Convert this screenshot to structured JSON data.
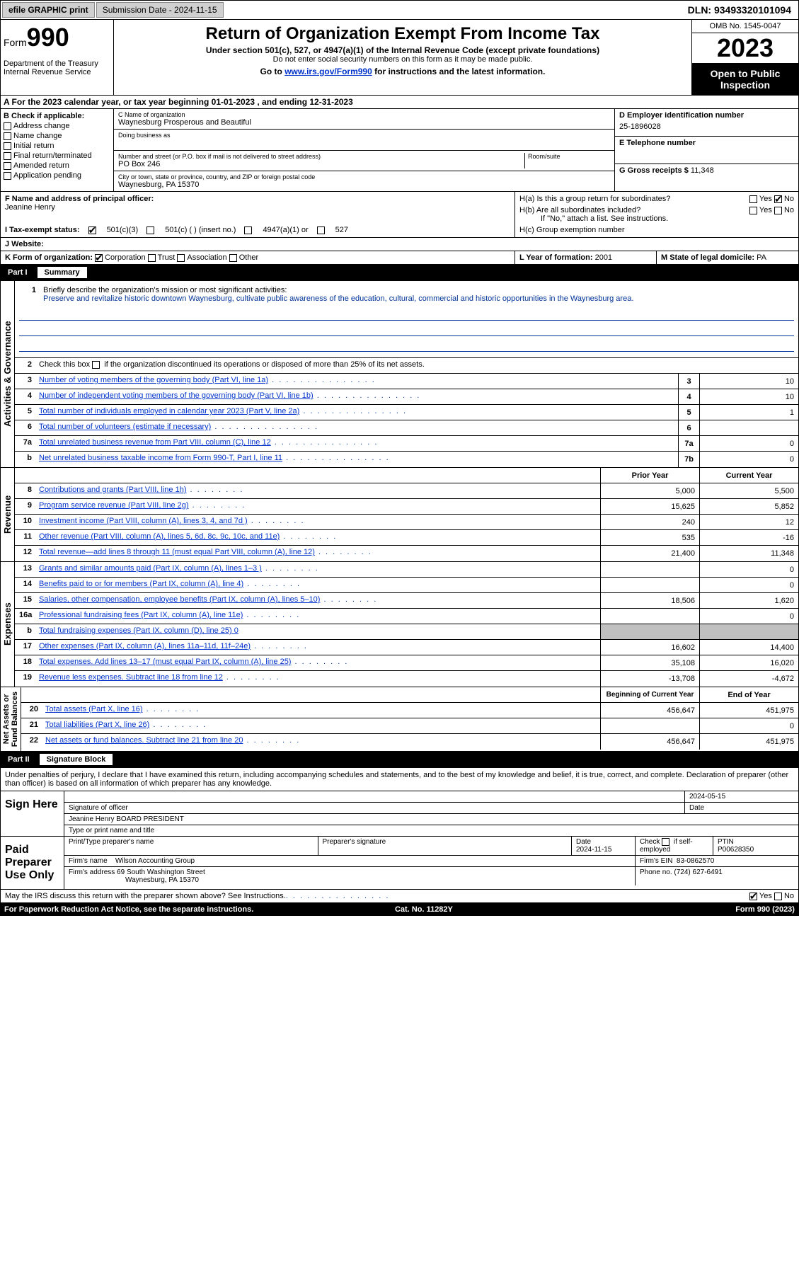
{
  "topbar": {
    "efile": "efile GRAPHIC print",
    "submission": "Submission Date - 2024-11-15",
    "dln": "DLN: 93493320101094"
  },
  "header": {
    "form_word": "Form",
    "form_num": "990",
    "title": "Return of Organization Exempt From Income Tax",
    "sub1": "Under section 501(c), 527, or 4947(a)(1) of the Internal Revenue Code (except private foundations)",
    "sub2": "Do not enter social security numbers on this form as it may be made public.",
    "sub3_pre": "Go to ",
    "sub3_link": "www.irs.gov/Form990",
    "sub3_post": " for instructions and the latest information.",
    "dept": "Department of the Treasury\nInternal Revenue Service",
    "omb": "OMB No. 1545-0047",
    "year": "2023",
    "open": "Open to Public Inspection"
  },
  "section_a": "A  For the 2023 calendar year, or tax year beginning 01-01-2023   , and ending 12-31-2023",
  "box_b": {
    "title": "B Check if applicable:",
    "opts": [
      "Address change",
      "Name change",
      "Initial return",
      "Final return/terminated",
      "Amended return",
      "Application pending"
    ]
  },
  "box_c": {
    "name_lbl": "C Name of organization",
    "name": "Waynesburg Prosperous and Beautiful",
    "dba_lbl": "Doing business as",
    "dba": "",
    "addr_lbl": "Number and street (or P.O. box if mail is not delivered to street address)",
    "addr": "PO Box 246",
    "room_lbl": "Room/suite",
    "city_lbl": "City or town, state or province, country, and ZIP or foreign postal code",
    "city": "Waynesburg, PA  15370"
  },
  "box_d": {
    "ein_lbl": "D Employer identification number",
    "ein": "25-1896028",
    "phone_lbl": "E Telephone number",
    "phone": "",
    "gross_lbl": "G Gross receipts $",
    "gross": "11,348"
  },
  "officer": {
    "f_lbl": "F  Name and address of principal officer:",
    "f_name": "Jeanine Henry",
    "ha": "H(a)  Is this a group return for subordinates?",
    "hb": "H(b)  Are all subordinates included?",
    "hb_note": "If \"No,\" attach a list. See instructions.",
    "hc": "H(c)  Group exemption number",
    "yes": "Yes",
    "no": "No"
  },
  "status": {
    "i_lbl": "I  Tax-exempt status:",
    "c3": "501(c)(3)",
    "c": "501(c) (  ) (insert no.)",
    "a1": "4947(a)(1) or",
    "s527": "527",
    "j_lbl": "J  Website:",
    "j_val": ""
  },
  "kform": {
    "k_lbl": "K Form of organization:",
    "corp": "Corporation",
    "trust": "Trust",
    "assoc": "Association",
    "other": "Other",
    "l_lbl": "L Year of formation:",
    "l_val": "2001",
    "m_lbl": "M State of legal domicile:",
    "m_val": "PA"
  },
  "part1": {
    "num": "Part I",
    "title": "Summary"
  },
  "summary": {
    "q1_lbl": "Briefly describe the organization's mission or most significant activities:",
    "q1_val": "Preserve and revitalize historic downtown Waynesburg, cultivate public awareness of the education, cultural, commercial and historic opportunities in the Waynesburg area.",
    "q2": "Check this box      if the organization discontinued its operations or disposed of more than 25% of its net assets.",
    "rows_gov": [
      {
        "n": "3",
        "lbl": "Number of voting members of the governing body (Part VI, line 1a)",
        "box": "3",
        "val": "10"
      },
      {
        "n": "4",
        "lbl": "Number of independent voting members of the governing body (Part VI, line 1b)",
        "box": "4",
        "val": "10"
      },
      {
        "n": "5",
        "lbl": "Total number of individuals employed in calendar year 2023 (Part V, line 2a)",
        "box": "5",
        "val": "1"
      },
      {
        "n": "6",
        "lbl": "Total number of volunteers (estimate if necessary)",
        "box": "6",
        "val": ""
      },
      {
        "n": "7a",
        "lbl": "Total unrelated business revenue from Part VIII, column (C), line 12",
        "box": "7a",
        "val": "0"
      },
      {
        "n": "b",
        "lbl": "Net unrelated business taxable income from Form 990-T, Part I, line 11",
        "box": "7b",
        "val": "0"
      }
    ],
    "prior_hdr": "Prior Year",
    "current_hdr": "Current Year",
    "rows_rev": [
      {
        "n": "8",
        "lbl": "Contributions and grants (Part VIII, line 1h)",
        "p": "5,000",
        "c": "5,500"
      },
      {
        "n": "9",
        "lbl": "Program service revenue (Part VIII, line 2g)",
        "p": "15,625",
        "c": "5,852"
      },
      {
        "n": "10",
        "lbl": "Investment income (Part VIII, column (A), lines 3, 4, and 7d )",
        "p": "240",
        "c": "12"
      },
      {
        "n": "11",
        "lbl": "Other revenue (Part VIII, column (A), lines 5, 6d, 8c, 9c, 10c, and 11e)",
        "p": "535",
        "c": "-16"
      },
      {
        "n": "12",
        "lbl": "Total revenue—add lines 8 through 11 (must equal Part VIII, column (A), line 12)",
        "p": "21,400",
        "c": "11,348"
      }
    ],
    "rows_exp": [
      {
        "n": "13",
        "lbl": "Grants and similar amounts paid (Part IX, column (A), lines 1–3 )",
        "p": "",
        "c": "0"
      },
      {
        "n": "14",
        "lbl": "Benefits paid to or for members (Part IX, column (A), line 4)",
        "p": "",
        "c": "0"
      },
      {
        "n": "15",
        "lbl": "Salaries, other compensation, employee benefits (Part IX, column (A), lines 5–10)",
        "p": "18,506",
        "c": "1,620"
      },
      {
        "n": "16a",
        "lbl": "Professional fundraising fees (Part IX, column (A), line 11e)",
        "p": "",
        "c": "0"
      },
      {
        "n": "b",
        "lbl": "Total fundraising expenses (Part IX, column (D), line 25) 0",
        "p": "grey",
        "c": "grey"
      },
      {
        "n": "17",
        "lbl": "Other expenses (Part IX, column (A), lines 11a–11d, 11f–24e)",
        "p": "16,602",
        "c": "14,400"
      },
      {
        "n": "18",
        "lbl": "Total expenses. Add lines 13–17 (must equal Part IX, column (A), line 25)",
        "p": "35,108",
        "c": "16,020"
      },
      {
        "n": "19",
        "lbl": "Revenue less expenses. Subtract line 18 from line 12",
        "p": "-13,708",
        "c": "-4,672"
      }
    ],
    "begin_hdr": "Beginning of Current Year",
    "end_hdr": "End of Year",
    "rows_net": [
      {
        "n": "20",
        "lbl": "Total assets (Part X, line 16)",
        "p": "456,647",
        "c": "451,975"
      },
      {
        "n": "21",
        "lbl": "Total liabilities (Part X, line 26)",
        "p": "",
        "c": "0"
      },
      {
        "n": "22",
        "lbl": "Net assets or fund balances. Subtract line 21 from line 20",
        "p": "456,647",
        "c": "451,975"
      }
    ]
  },
  "vtabs": {
    "gov": "Activities & Governance",
    "rev": "Revenue",
    "exp": "Expenses",
    "net": "Net Assets or\nFund Balances"
  },
  "part2": {
    "num": "Part II",
    "title": "Signature Block"
  },
  "sig": {
    "decl": "Under penalties of perjury, I declare that I have examined this return, including accompanying schedules and statements, and to the best of my knowledge and belief, it is true, correct, and complete. Declaration of preparer (other than officer) is based on all information of which preparer has any knowledge.",
    "sign_here": "Sign Here",
    "sig_officer_lbl": "Signature of officer",
    "sig_date": "2024-05-15",
    "date_lbl": "Date",
    "officer_name": "Jeanine Henry BOARD PRESIDENT",
    "type_lbl": "Type or print name and title",
    "paid": "Paid Preparer Use Only",
    "prep_name_lbl": "Print/Type preparer's name",
    "prep_sig_lbl": "Preparer's signature",
    "prep_date_lbl": "Date",
    "prep_date": "2024-11-15",
    "check_lbl": "Check       if self-employed",
    "ptin_lbl": "PTIN",
    "ptin": "P00628350",
    "firm_name_lbl": "Firm's name",
    "firm_name": "Wilson Accounting Group",
    "firm_ein_lbl": "Firm's EIN",
    "firm_ein": "83-0862570",
    "firm_addr_lbl": "Firm's address",
    "firm_addr1": "69 South Washington Street",
    "firm_addr2": "Waynesburg, PA  15370",
    "phone_lbl": "Phone no.",
    "phone": "(724) 627-6491"
  },
  "discuss": {
    "q": "May the IRS discuss this return with the preparer shown above? See Instructions.",
    "yes": "Yes",
    "no": "No"
  },
  "footer": {
    "left": "For Paperwork Reduction Act Notice, see the separate instructions.",
    "mid": "Cat. No. 11282Y",
    "right": "Form 990 (2023)"
  },
  "colors": {
    "link": "#0033cc",
    "label": "#003399"
  }
}
